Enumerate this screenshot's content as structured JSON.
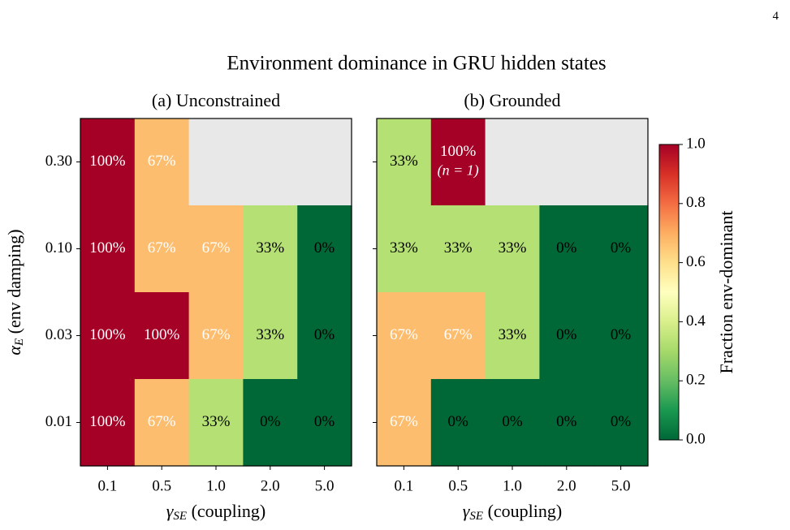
{
  "page_number": "4",
  "chart_data": {
    "type": "heatmap",
    "title": "Environment dominance in GRU hidden states",
    "x_label_symbol": "γ",
    "x_label_subscript": "SE",
    "x_label_text": " (coupling)",
    "y_label_symbol": "α",
    "y_label_subscript": "E",
    "y_label_text": " (env damping)",
    "x_ticks": [
      "0.1",
      "0.5",
      "1.0",
      "2.0",
      "5.0"
    ],
    "y_ticks": [
      "0.30",
      "0.10",
      "0.03",
      "0.01"
    ],
    "colorbar": {
      "label": "Fraction env-dominant",
      "colormap": "RdYlGn_r",
      "range": [
        0.0,
        1.0
      ],
      "ticks": [
        "0.0",
        "0.2",
        "0.4",
        "0.6",
        "0.8",
        "1.0"
      ]
    },
    "missing_color": "#e8e8e8",
    "panels": [
      {
        "title": "(a) Unconstrained",
        "values": [
          [
            1.0,
            0.67,
            null,
            null,
            null
          ],
          [
            1.0,
            0.67,
            0.67,
            0.33,
            0.0
          ],
          [
            1.0,
            1.0,
            0.67,
            0.33,
            0.0
          ],
          [
            1.0,
            0.67,
            0.33,
            0.0,
            0.0
          ]
        ],
        "labels": [
          [
            "100%",
            "67%",
            "",
            "",
            ""
          ],
          [
            "100%",
            "67%",
            "67%",
            "33%",
            "0%"
          ],
          [
            "100%",
            "100%",
            "67%",
            "33%",
            "0%"
          ],
          [
            "100%",
            "67%",
            "33%",
            "0%",
            "0%"
          ]
        ],
        "sublabels": [
          [
            "",
            "",
            "",
            "",
            ""
          ],
          [
            "",
            "",
            "",
            "",
            ""
          ],
          [
            "",
            "",
            "",
            "",
            ""
          ],
          [
            "",
            "",
            "",
            "",
            ""
          ]
        ]
      },
      {
        "title": "(b) Grounded",
        "values": [
          [
            0.33,
            1.0,
            null,
            null,
            null
          ],
          [
            0.33,
            0.33,
            0.33,
            0.0,
            0.0
          ],
          [
            0.67,
            0.67,
            0.33,
            0.0,
            0.0
          ],
          [
            0.67,
            0.0,
            0.0,
            0.0,
            0.0
          ]
        ],
        "labels": [
          [
            "33%",
            "100%",
            "",
            "",
            ""
          ],
          [
            "33%",
            "33%",
            "33%",
            "0%",
            "0%"
          ],
          [
            "67%",
            "67%",
            "33%",
            "0%",
            "0%"
          ],
          [
            "67%",
            "0%",
            "0%",
            "0%",
            "0%"
          ]
        ],
        "sublabels": [
          [
            "",
            "(n = 1)",
            "",
            "",
            ""
          ],
          [
            "",
            "",
            "",
            "",
            ""
          ],
          [
            "",
            "",
            "",
            "",
            ""
          ],
          [
            "",
            "",
            "",
            "",
            ""
          ]
        ]
      }
    ]
  }
}
